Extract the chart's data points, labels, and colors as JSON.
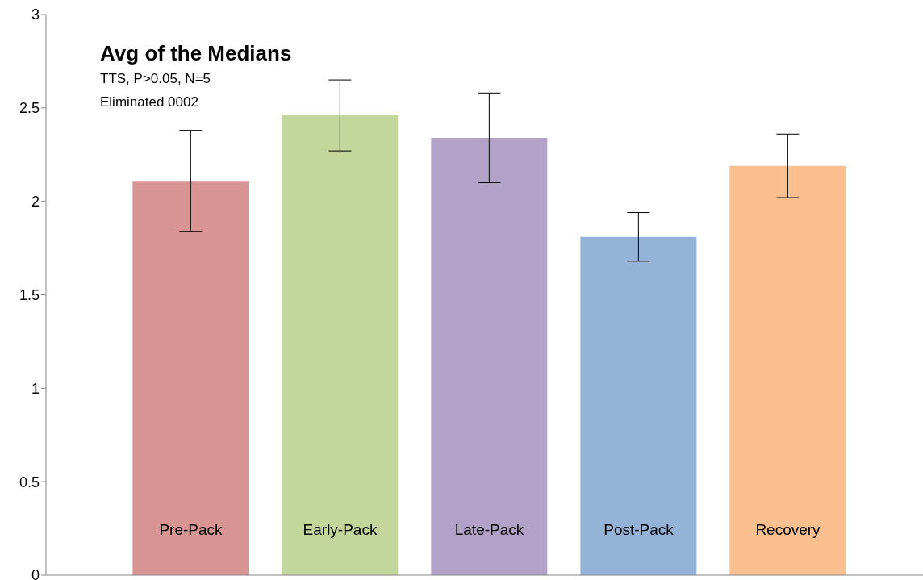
{
  "chart_data": {
    "type": "bar",
    "title": "Avg of the Medians",
    "subtitle": "TTS, P>0.05, N=5",
    "annotations": [
      "Eliminated 0002"
    ],
    "categories": [
      "Pre-Pack",
      "Early-Pack",
      "Late-Pack",
      "Post-Pack",
      "Recovery"
    ],
    "values": [
      2.11,
      2.46,
      2.34,
      1.81,
      2.19
    ],
    "errors": [
      0.27,
      0.19,
      0.24,
      0.13,
      0.17
    ],
    "colors": [
      "#d99594",
      "#c3d69b",
      "#b2a2c7",
      "#95b3d7",
      "#fac090"
    ],
    "ylim": [
      0,
      3
    ],
    "yticks": [
      0,
      0.5,
      1,
      1.5,
      2,
      2.5,
      3
    ],
    "grid": false,
    "legend": false
  }
}
